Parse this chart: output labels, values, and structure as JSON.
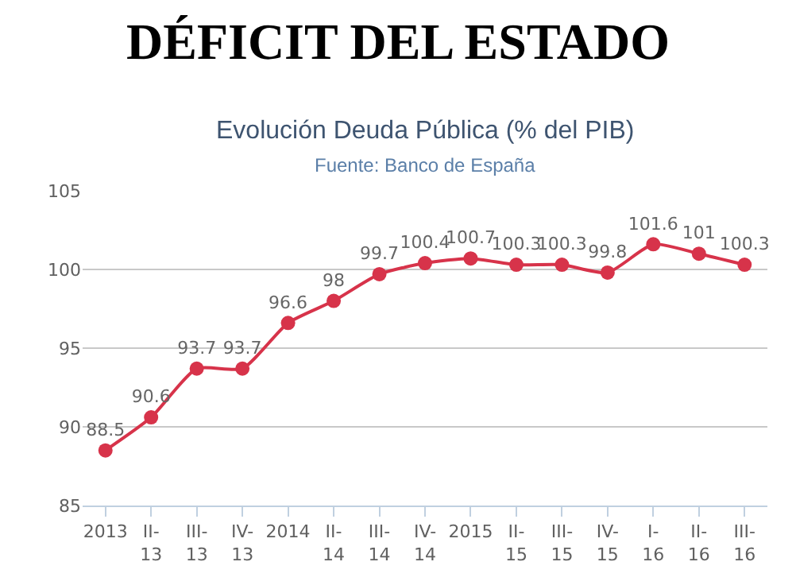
{
  "chart_data": {
    "type": "line",
    "title": "DÉFICIT DEL ESTADO",
    "subtitle": "Evolución Deuda Pública (% del PIB)",
    "annotations": [
      "Fuente: Banco de España"
    ],
    "categories": [
      "2013",
      "II-13",
      "III-13",
      "IV-13",
      "2014",
      "II-14",
      "III-14",
      "IV-14",
      "2015",
      "II-15",
      "III-15",
      "IV-15",
      "I-16",
      "II-16",
      "III-16"
    ],
    "series": [
      {
        "color": "#d7334a",
        "values": [
          88.5,
          90.6,
          93.7,
          93.7,
          96.6,
          98,
          99.7,
          100.4,
          100.7,
          100.3,
          100.3,
          99.8,
          101.6,
          101,
          100.3
        ]
      }
    ],
    "ylim": [
      85,
      105
    ],
    "yticks": [
      85,
      90,
      95,
      100,
      105
    ],
    "grid": "y",
    "marker": "circle",
    "line_style": "solid",
    "data_labels": true
  }
}
